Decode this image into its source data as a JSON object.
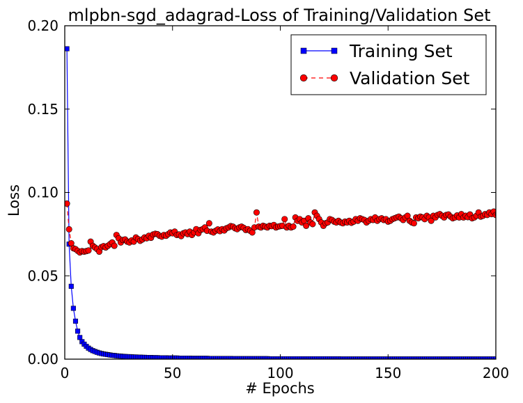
{
  "chart_data": {
    "type": "line",
    "title": "mlpbn-sgd_adagrad-Loss of Training/Validation Set",
    "xlabel": "# Epochs",
    "ylabel": "Loss",
    "xlim": [
      0,
      200
    ],
    "ylim": [
      0,
      0.2
    ],
    "xticks": [
      0,
      50,
      100,
      150,
      200
    ],
    "yticks": [
      0.0,
      0.05,
      0.1,
      0.15,
      0.2
    ],
    "xtick_labels": [
      "0",
      "50",
      "100",
      "150",
      "200"
    ],
    "ytick_labels": [
      "0.00",
      "0.05",
      "0.10",
      "0.15",
      "0.20"
    ],
    "grid": false,
    "legend_position": "top-right",
    "series": [
      {
        "name": "Training Set",
        "color": "#0000ff",
        "marker": "square",
        "line_style": "solid",
        "x_start": 1,
        "values": [
          0.1862,
          0.069,
          0.0437,
          0.0305,
          0.0228,
          0.0168,
          0.013,
          0.0105,
          0.009,
          0.0077,
          0.0066,
          0.0058,
          0.0051,
          0.0046,
          0.0041,
          0.0037,
          0.0034,
          0.0031,
          0.0029,
          0.0027,
          0.0025,
          0.0023,
          0.0022,
          0.002,
          0.0019,
          0.0018,
          0.0017,
          0.0016,
          0.0015,
          0.0015,
          0.0014,
          0.0013,
          0.0013,
          0.0012,
          0.0012,
          0.0011,
          0.0011,
          0.001,
          0.001,
          0.001,
          0.0009,
          0.0009,
          0.0009,
          0.0008,
          0.0008,
          0.0008,
          0.0008,
          0.0007,
          0.0007,
          0.0007,
          0.0007,
          0.0007,
          0.0006,
          0.0006,
          0.0006,
          0.0006,
          0.0006,
          0.0006,
          0.0005,
          0.0005,
          0.0005,
          0.0005,
          0.0005,
          0.0005,
          0.0005,
          0.0005,
          0.0004,
          0.0004,
          0.0004,
          0.0004,
          0.0004,
          0.0004,
          0.0004,
          0.0004,
          0.0004,
          0.0004,
          0.0004,
          0.0003,
          0.0003,
          0.0003,
          0.0003,
          0.0003,
          0.0003,
          0.0003,
          0.0003,
          0.0003,
          0.0003,
          0.0003,
          0.0003,
          0.0003,
          0.0003,
          0.0003,
          0.0003,
          0.0003,
          0.0002,
          0.0002,
          0.0002,
          0.0002,
          0.0002,
          0.0002,
          0.0002,
          0.0002,
          0.0002,
          0.0002,
          0.0002,
          0.0002,
          0.0002,
          0.0002,
          0.0002,
          0.0002,
          0.0002,
          0.0002,
          0.0002,
          0.0002,
          0.0002,
          0.0002,
          0.0002,
          0.0002,
          0.0002,
          0.0002,
          0.0002,
          0.0002,
          0.0002,
          0.0002,
          0.0002,
          0.0002,
          0.0002,
          0.0001,
          0.0001,
          0.0001,
          0.0001,
          0.0001,
          0.0001,
          0.0001,
          0.0001,
          0.0001,
          0.0001,
          0.0001,
          0.0001,
          0.0001,
          0.0001,
          0.0001,
          0.0001,
          0.0001,
          0.0001,
          0.0001,
          0.0001,
          0.0001,
          0.0001,
          0.0001,
          0.0001,
          0.0001,
          0.0001,
          0.0001,
          0.0001,
          0.0001,
          0.0001,
          0.0001,
          0.0001,
          0.0001,
          0.0001,
          0.0001,
          0.0001,
          0.0001,
          0.0001,
          0.0001,
          0.0001,
          0.0001,
          0.0001,
          0.0001,
          0.0001,
          0.0001,
          0.0001,
          0.0001,
          0.0001,
          0.0001,
          0.0001,
          0.0001,
          0.0001,
          0.0001,
          0.0001,
          0.0001,
          0.0001,
          0.0001,
          0.0001,
          0.0001,
          0.0001,
          0.0001,
          0.0001,
          0.0001,
          0.0001,
          0.0001,
          0.0001,
          0.0001,
          0.0001,
          0.0001,
          0.0001,
          0.0001,
          0.0001,
          0.0001,
          0.0001,
          0.0001,
          0.0001,
          0.0001,
          0.0001,
          0.0001,
          0.0001
        ]
      },
      {
        "name": "Validation Set",
        "color": "#ff0000",
        "marker": "circle",
        "line_style": "dashed",
        "x_start": 1,
        "values": [
          0.0933,
          0.0779,
          0.0695,
          0.0665,
          0.066,
          0.065,
          0.064,
          0.0648,
          0.0645,
          0.0648,
          0.0652,
          0.0705,
          0.068,
          0.067,
          0.066,
          0.0645,
          0.0672,
          0.0678,
          0.067,
          0.068,
          0.069,
          0.07,
          0.068,
          0.0745,
          0.0725,
          0.07,
          0.0715,
          0.0718,
          0.0705,
          0.07,
          0.0712,
          0.0705,
          0.073,
          0.072,
          0.071,
          0.0718,
          0.073,
          0.0725,
          0.074,
          0.0728,
          0.0748,
          0.0752,
          0.075,
          0.074,
          0.0735,
          0.0745,
          0.074,
          0.075,
          0.076,
          0.0755,
          0.0765,
          0.0745,
          0.0748,
          0.0738,
          0.0755,
          0.076,
          0.075,
          0.0765,
          0.0745,
          0.076,
          0.078,
          0.0755,
          0.0775,
          0.078,
          0.079,
          0.077,
          0.0815,
          0.0765,
          0.076,
          0.077,
          0.0778,
          0.0768,
          0.078,
          0.0772,
          0.0785,
          0.079,
          0.0798,
          0.0795,
          0.0785,
          0.078,
          0.079,
          0.0795,
          0.0788,
          0.0775,
          0.078,
          0.077,
          0.076,
          0.079,
          0.088,
          0.0795,
          0.079,
          0.08,
          0.0795,
          0.079,
          0.08,
          0.0798,
          0.0805,
          0.079,
          0.0795,
          0.0798,
          0.08,
          0.084,
          0.079,
          0.08,
          0.079,
          0.0795,
          0.085,
          0.083,
          0.084,
          0.082,
          0.083,
          0.08,
          0.0845,
          0.082,
          0.081,
          0.088,
          0.086,
          0.084,
          0.082,
          0.08,
          0.0815,
          0.082,
          0.084,
          0.0835,
          0.0825,
          0.082,
          0.083,
          0.082,
          0.0815,
          0.0825,
          0.082,
          0.083,
          0.0818,
          0.0825,
          0.084,
          0.083,
          0.0845,
          0.084,
          0.0835,
          0.082,
          0.083,
          0.084,
          0.0835,
          0.085,
          0.083,
          0.084,
          0.0845,
          0.0835,
          0.084,
          0.0825,
          0.083,
          0.084,
          0.0845,
          0.085,
          0.0855,
          0.0845,
          0.0835,
          0.085,
          0.086,
          0.083,
          0.082,
          0.0815,
          0.085,
          0.0845,
          0.0855,
          0.085,
          0.084,
          0.086,
          0.085,
          0.083,
          0.086,
          0.085,
          0.0865,
          0.087,
          0.086,
          0.085,
          0.0865,
          0.0868,
          0.0855,
          0.0845,
          0.085,
          0.0862,
          0.085,
          0.087,
          0.085,
          0.086,
          0.0852,
          0.0868,
          0.0845,
          0.085,
          0.086,
          0.088,
          0.0855,
          0.086,
          0.087,
          0.0865,
          0.088,
          0.087,
          0.0885,
          0.0865,
          0.087,
          0.0875,
          0.088,
          0.087,
          0.0875,
          0.088,
          0.0835
        ]
      }
    ]
  }
}
